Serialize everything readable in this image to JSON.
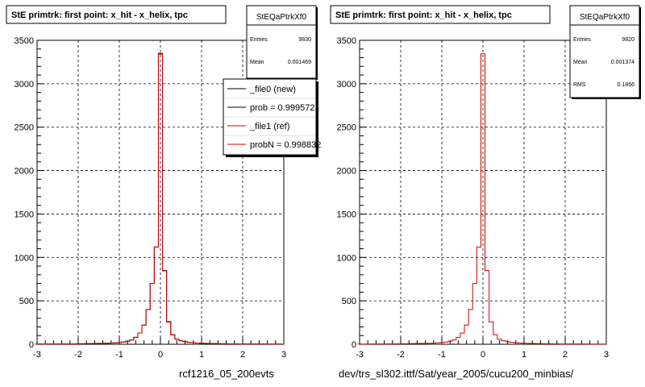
{
  "chart_data": [
    {
      "type": "bar",
      "title": "StE primtrk: first point: x_hit - x_helix, tpc",
      "stats_title": "StEQaPtrkXf0",
      "stats": [
        {
          "label": "Entries",
          "value": "9830"
        },
        {
          "label": "Mean",
          "value": "0.001469"
        }
      ],
      "xlim": [
        -3,
        3
      ],
      "ylim": [
        0,
        3500
      ],
      "xticks": [
        "-3",
        "-2",
        "-1",
        "0",
        "1",
        "2",
        "3"
      ],
      "yticks": [
        "0",
        "500",
        "1000",
        "1500",
        "2000",
        "2500",
        "3000",
        "3500"
      ],
      "grid": true,
      "bin_width": 0.1,
      "bin_centers": [
        -3.0,
        -2.9,
        -2.8,
        -2.7,
        -2.6,
        -2.5,
        -2.4,
        -2.3,
        -2.2,
        -2.1,
        -2.0,
        -1.9,
        -1.8,
        -1.7,
        -1.6,
        -1.5,
        -1.4,
        -1.3,
        -1.2,
        -1.1,
        -1.0,
        -0.9,
        -0.8,
        -0.7,
        -0.6,
        -0.5,
        -0.4,
        -0.3,
        -0.2,
        -0.1,
        0.0,
        0.1,
        0.2,
        0.3,
        0.4,
        0.5,
        0.6,
        0.7,
        0.8,
        0.9,
        1.0,
        1.1,
        1.2,
        1.3,
        1.4,
        1.5,
        1.6,
        1.7,
        1.8,
        1.9,
        2.0,
        2.1,
        2.2,
        2.3,
        2.4,
        2.5,
        2.6,
        2.7,
        2.8,
        2.9
      ],
      "series": [
        {
          "name": "_file0 (new)",
          "color": "#000000",
          "values": [
            2,
            2,
            2,
            3,
            3,
            3,
            4,
            4,
            5,
            5,
            6,
            6,
            7,
            8,
            9,
            10,
            11,
            12,
            14,
            16,
            20,
            25,
            35,
            50,
            80,
            130,
            220,
            400,
            700,
            1120,
            3350,
            850,
            260,
            110,
            60,
            40,
            30,
            22,
            18,
            14,
            12,
            10,
            9,
            8,
            7,
            6,
            6,
            5,
            5,
            4,
            4,
            4,
            3,
            3,
            3,
            3,
            2,
            2,
            2,
            2
          ]
        },
        {
          "name": "_file1 (ref)",
          "color": "#cc0000",
          "values": [
            2,
            2,
            2,
            3,
            3,
            3,
            4,
            4,
            5,
            5,
            6,
            6,
            7,
            8,
            9,
            10,
            11,
            12,
            14,
            16,
            20,
            25,
            35,
            50,
            80,
            130,
            220,
            400,
            700,
            1120,
            3340,
            845,
            255,
            108,
            58,
            39,
            30,
            22,
            18,
            14,
            12,
            10,
            9,
            8,
            7,
            6,
            6,
            5,
            5,
            4,
            4,
            4,
            3,
            3,
            3,
            3,
            2,
            2,
            2,
            2
          ]
        }
      ],
      "legend": {
        "placement": "top-right",
        "entries": [
          {
            "text": "_file0 (new)",
            "color": "#000000"
          },
          {
            "text": "prob = 0.999572",
            "color": "#000000"
          },
          {
            "text": "_file1 (ref)",
            "color": "#cc0000"
          },
          {
            "text": "probN = 0.998832",
            "color": "#cc0000"
          }
        ]
      },
      "caption": "rcf1216_05_200evts"
    },
    {
      "type": "bar",
      "title": "StE primtrk: first point: x_hit - x_helix, tpc",
      "stats_title": "StEQaPtrkXf0",
      "stats": [
        {
          "label": "Entries",
          "value": "9820"
        },
        {
          "label": "Mean",
          "value": "0.001374"
        },
        {
          "label": "RMS",
          "value": "0.1866"
        }
      ],
      "xlim": [
        -3,
        3
      ],
      "ylim": [
        0,
        3500
      ],
      "xticks": [
        "-3",
        "-2",
        "-1",
        "0",
        "1",
        "2",
        "3"
      ],
      "yticks": [
        "0",
        "500",
        "1000",
        "1500",
        "2000",
        "2500",
        "3000",
        "3500"
      ],
      "grid": true,
      "bin_width": 0.1,
      "bin_centers": [
        -3.0,
        -2.9,
        -2.8,
        -2.7,
        -2.6,
        -2.5,
        -2.4,
        -2.3,
        -2.2,
        -2.1,
        -2.0,
        -1.9,
        -1.8,
        -1.7,
        -1.6,
        -1.5,
        -1.4,
        -1.3,
        -1.2,
        -1.1,
        -1.0,
        -0.9,
        -0.8,
        -0.7,
        -0.6,
        -0.5,
        -0.4,
        -0.3,
        -0.2,
        -0.1,
        0.0,
        0.1,
        0.2,
        0.3,
        0.4,
        0.5,
        0.6,
        0.7,
        0.8,
        0.9,
        1.0,
        1.1,
        1.2,
        1.3,
        1.4,
        1.5,
        1.6,
        1.7,
        1.8,
        1.9,
        2.0,
        2.1,
        2.2,
        2.3,
        2.4,
        2.5,
        2.6,
        2.7,
        2.8,
        2.9
      ],
      "series": [
        {
          "color": "#cc0000",
          "values": [
            2,
            2,
            2,
            3,
            3,
            3,
            4,
            4,
            5,
            5,
            6,
            6,
            7,
            8,
            9,
            10,
            11,
            12,
            14,
            16,
            20,
            25,
            35,
            50,
            80,
            130,
            220,
            400,
            700,
            1120,
            3345,
            848,
            258,
            110,
            59,
            40,
            30,
            22,
            18,
            14,
            12,
            10,
            9,
            8,
            7,
            6,
            6,
            5,
            5,
            4,
            4,
            4,
            3,
            3,
            3,
            3,
            2,
            2,
            2,
            2
          ]
        }
      ],
      "caption": "dev/trs_sl302.ittf/Sat/year_2005/cucu200_minbias/"
    }
  ]
}
